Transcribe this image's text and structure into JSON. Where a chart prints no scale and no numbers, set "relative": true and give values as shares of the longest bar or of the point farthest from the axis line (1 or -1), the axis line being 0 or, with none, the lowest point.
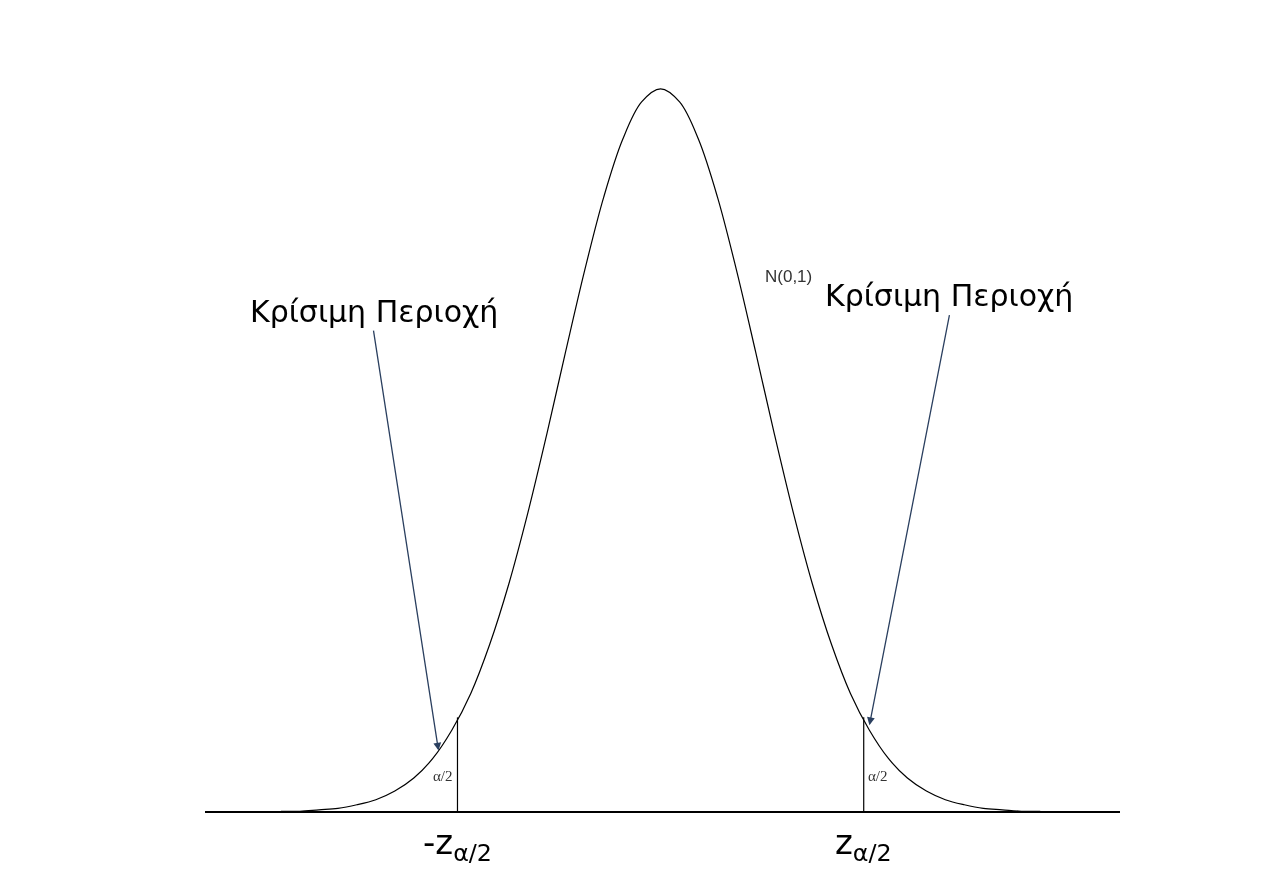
{
  "chart_data": {
    "type": "line",
    "relative": true,
    "categories": [
      null,
      null,
      null,
      null,
      null,
      null,
      null,
      null,
      null,
      null,
      null,
      null,
      null,
      null,
      null,
      null,
      null,
      null,
      null,
      null,
      null,
      null,
      null,
      null,
      null,
      null,
      null,
      null,
      null,
      null,
      null,
      null,
      null,
      null,
      null,
      null,
      null,
      null,
      null,
      null,
      null
    ],
    "series": [
      {
        "color": "#000000",
        "values": [
          0.001,
          0.001,
          0.003,
          0.005,
          0.01,
          0.017,
          0.029,
          0.047,
          0.074,
          0.113,
          0.164,
          0.232,
          0.315,
          0.413,
          0.522,
          0.637,
          0.749,
          0.85,
          0.93,
          0.982,
          1,
          0.982,
          0.93,
          0.85,
          0.749,
          0.637,
          0.522,
          0.413,
          0.315,
          0.232,
          0.164,
          0.113,
          0.074,
          0.047,
          0.029,
          0.017,
          0.01,
          0.005,
          0.003,
          0.001,
          0.001
        ]
      }
    ],
    "annotations": [
      "N(0,1)",
      "α/2",
      "α/2",
      "Κρίσιμη Περιοχή",
      "Κρίσιμη Περιοχή",
      "-z$_{α/2}$",
      "z$_{α/2}$"
    ],
    "legend": false,
    "marker": "none",
    "line_style": "solid"
  }
}
